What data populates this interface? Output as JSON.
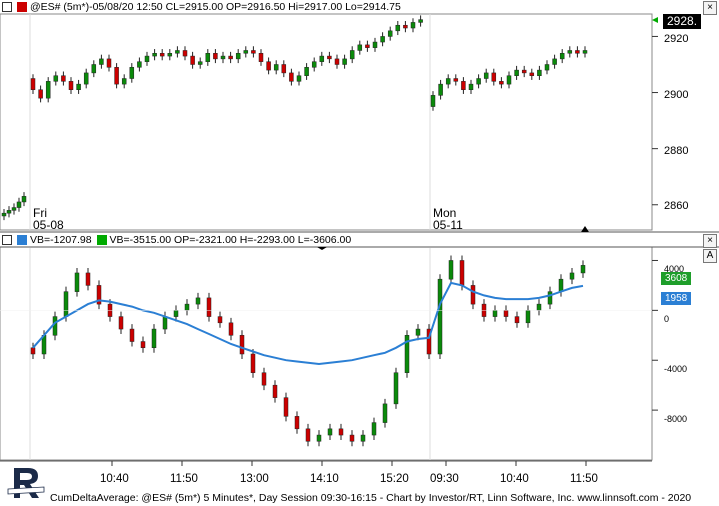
{
  "upper_header": "@ES# (5m*)-05/08/20 12:50 CL=2915.00 OP=2916.50 Hi=2917.00 Lo=2914.75",
  "lower_header": {
    "vb1": "VB=-1207.98",
    "vb2": "VB=-3515.00 OP=-2321.00 H=-2293.00 L=-3606.00"
  },
  "day_labels": [
    {
      "day": "Fri",
      "date": "05-08"
    },
    {
      "day": "Mon",
      "date": "05-11"
    }
  ],
  "price_axis": [
    "2920",
    "2900",
    "2880",
    "2860"
  ],
  "price_badge": "2928.",
  "osc_axis": [
    "4000",
    "0",
    "-4000",
    "-8000"
  ],
  "osc_badges": {
    "green": "3608",
    "blue": "1958"
  },
  "time_axis": [
    "10:40",
    "11:50",
    "13:00",
    "14:10",
    "15:20",
    "09:30",
    "10:40",
    "11:50"
  ],
  "footer": "CumDeltaAverage: @ES# (5m*) 5 Minutes*, Day Session 09:30-16:15 - Chart by Investor/RT, Linn Software, Inc. www.linnsoft.com - 2020",
  "panel_buttons": {
    "upper": "×",
    "lower": "×",
    "lower_a": "A"
  },
  "logo_text": "INVESTOR/RT",
  "colors": {
    "up": "#0a8a0a",
    "down": "#cc0000",
    "avg": "#2b7fd4",
    "grid": "#dcdcdc"
  },
  "chart_data": [
    {
      "type": "candlestick",
      "title": "@ES# (5m*)",
      "ylim": [
        2851,
        2928
      ],
      "series": [
        {
          "session": "05-08",
          "close": [
            2901,
            2898,
            2904,
            2906,
            2904,
            2901,
            2903,
            2907,
            2910,
            2912,
            2909,
            2903,
            2905,
            2909,
            2911,
            2913,
            2914,
            2913,
            2914,
            2915,
            2913,
            2910,
            2911,
            2914,
            2912,
            2913,
            2912,
            2914,
            2915,
            2914,
            2911,
            2908,
            2910,
            2907,
            2904,
            2906,
            2909,
            2911,
            2913,
            2912,
            2910,
            2912,
            2915,
            2917,
            2916,
            2918,
            2920,
            2922,
            2924,
            2923,
            2925,
            2926
          ]
        },
        {
          "session": "05-11",
          "close": [
            2899,
            2903,
            2905,
            2904,
            2901,
            2903,
            2905,
            2907,
            2904,
            2903,
            2906,
            2908,
            2907,
            2906,
            2908,
            2910,
            2912,
            2914,
            2915,
            2914,
            2915
          ]
        }
      ]
    },
    {
      "type": "bar",
      "title": "CumDeltaAverage",
      "ylim": [
        -12000,
        5000
      ],
      "series": [
        {
          "name": "VB",
          "values": [
            -3500,
            -2000,
            -500,
            1500,
            3000,
            2000,
            500,
            -500,
            -1500,
            -2500,
            -3000,
            -1500,
            -500,
            0,
            500,
            1000,
            -500,
            -1000,
            -2000,
            -3500,
            -5000,
            -6000,
            -7000,
            -8500,
            -9500,
            -10500,
            -10000,
            -9500,
            -10000,
            -10500,
            -10000,
            -9000,
            -7500,
            -5000,
            -2000,
            -1500,
            -3500,
            2500,
            4000,
            2000,
            500,
            -500,
            0,
            -500,
            -1000,
            0,
            500,
            1500,
            2500,
            3000,
            3608
          ]
        },
        {
          "name": "VB",
          "values": [
            -3000,
            -2000,
            -1000,
            -500,
            0,
            500,
            800,
            700,
            500,
            300,
            0,
            -200,
            -500,
            -800,
            -1100,
            -1500,
            -1900,
            -2300,
            -2700,
            -3000,
            -3300,
            -3600,
            -3800,
            -4000,
            -4100,
            -4200,
            -4300,
            -4200,
            -4100,
            -4000,
            -3800,
            -3600,
            -3400,
            -3000,
            -2500,
            -2300,
            -2200,
            500,
            2200,
            2000,
            1500,
            1200,
            1000,
            900,
            900,
            900,
            1000,
            1200,
            1500,
            1800,
            1958
          ]
        }
      ]
    }
  ]
}
